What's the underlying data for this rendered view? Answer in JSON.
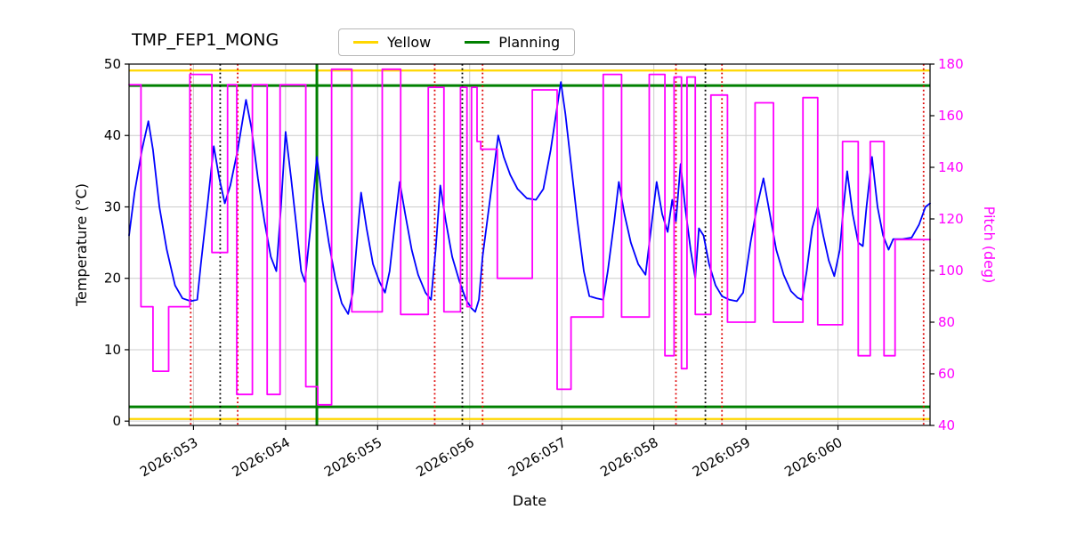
{
  "title": "TMP_FEP1_MONG",
  "legend": {
    "items": [
      {
        "label": "Yellow",
        "color": "#ffd700"
      },
      {
        "label": "Planning",
        "color": "#008000"
      }
    ]
  },
  "chart_data": {
    "type": "line",
    "title": "TMP_FEP1_MONG",
    "xlabel": "Date",
    "ylabel_left": "Temperature (°C)",
    "ylabel_right": "Pitch (deg)",
    "grid": true,
    "x_range_days": [
      52.3,
      61.0
    ],
    "x_tick_days": [
      53,
      54,
      55,
      56,
      57,
      58,
      59,
      60
    ],
    "x_tick_labels": [
      "2026:053",
      "2026:054",
      "2026:055",
      "2026:056",
      "2026:057",
      "2026:058",
      "2026:059",
      "2026:060"
    ],
    "y_left_range": [
      -0.6,
      50
    ],
    "y_left_ticks": [
      0,
      10,
      20,
      30,
      40,
      50
    ],
    "y_right_range": [
      40,
      180
    ],
    "y_right_ticks": [
      40,
      60,
      80,
      100,
      120,
      140,
      160,
      180
    ],
    "series": [
      {
        "name": "temperature",
        "axis": "left",
        "color": "#0000ff",
        "x": [
          52.3,
          52.36,
          52.44,
          52.51,
          52.56,
          52.63,
          52.71,
          52.8,
          52.88,
          52.97,
          53.04,
          53.08,
          53.15,
          53.22,
          53.28,
          53.34,
          53.4,
          53.48,
          53.57,
          53.63,
          53.7,
          53.77,
          53.84,
          53.9,
          53.95,
          54.0,
          54.06,
          54.12,
          54.17,
          54.21,
          54.27,
          54.34,
          54.4,
          54.47,
          54.54,
          54.61,
          54.68,
          54.73,
          54.78,
          54.82,
          54.88,
          54.95,
          55.02,
          55.08,
          55.13,
          55.19,
          55.24,
          55.3,
          55.37,
          55.44,
          55.52,
          55.58,
          55.63,
          55.68,
          55.74,
          55.81,
          55.89,
          55.96,
          56.02,
          56.06,
          56.1,
          56.14,
          56.19,
          56.26,
          56.31,
          56.37,
          56.44,
          56.52,
          56.62,
          56.72,
          56.8,
          56.88,
          56.95,
          56.99,
          57.04,
          57.1,
          57.17,
          57.24,
          57.3,
          57.38,
          57.45,
          57.5,
          57.57,
          57.62,
          57.68,
          57.75,
          57.83,
          57.91,
          57.97,
          58.03,
          58.09,
          58.15,
          58.2,
          58.24,
          58.29,
          58.34,
          58.4,
          58.45,
          58.49,
          58.54,
          58.6,
          58.67,
          58.74,
          58.82,
          58.9,
          58.97,
          59.05,
          59.12,
          59.19,
          59.26,
          59.33,
          59.41,
          59.49,
          59.56,
          59.61,
          59.66,
          59.72,
          59.78,
          59.84,
          59.9,
          59.96,
          60.02,
          60.06,
          60.1,
          60.16,
          60.22,
          60.27,
          60.31,
          60.37,
          60.43,
          60.49,
          60.55,
          60.6,
          60.7,
          60.8,
          60.88,
          60.95,
          61.0
        ],
        "y": [
          26,
          32,
          38,
          42,
          38,
          30,
          24,
          19,
          17.2,
          16.8,
          17,
          22,
          30,
          38.5,
          34,
          30.5,
          33,
          38,
          45,
          41,
          34,
          28,
          23,
          21,
          30,
          40.5,
          34,
          27,
          21,
          19.5,
          27,
          37,
          31,
          25,
          20,
          16.5,
          15,
          18,
          26,
          32,
          27,
          22,
          19.5,
          18,
          21,
          28,
          33.5,
          29,
          24,
          20.5,
          18,
          17,
          24,
          33,
          28,
          23,
          19.5,
          17,
          15.8,
          15.3,
          17,
          23,
          28,
          35,
          40,
          37,
          34.5,
          32.5,
          31.2,
          31,
          32.5,
          38,
          44,
          47.5,
          43,
          36,
          28,
          21,
          17.5,
          17.2,
          17,
          21,
          28,
          33.5,
          29,
          25,
          22,
          20.5,
          27,
          33.5,
          29,
          26.5,
          31,
          28,
          36,
          30,
          24,
          20,
          27,
          26,
          22,
          19,
          17.5,
          17,
          16.8,
          18,
          25,
          30,
          34,
          29,
          24,
          20.5,
          18.2,
          17.3,
          17,
          21,
          27,
          30,
          26,
          22.5,
          20.3,
          24,
          30,
          35,
          29,
          25,
          24.5,
          30,
          37,
          30,
          26,
          24,
          25.5,
          25.5,
          25.7,
          27.5,
          30,
          30.5
        ]
      },
      {
        "name": "pitch",
        "axis": "right",
        "color": "#ff00ff",
        "x": [
          52.3,
          52.43,
          52.43,
          52.56,
          52.56,
          52.73,
          52.73,
          52.96,
          52.96,
          53.2,
          53.2,
          53.37,
          53.37,
          53.47,
          53.47,
          53.64,
          53.64,
          53.8,
          53.8,
          53.94,
          53.94,
          54.22,
          54.22,
          54.35,
          54.35,
          54.5,
          54.5,
          54.72,
          54.72,
          55.05,
          55.05,
          55.25,
          55.25,
          55.55,
          55.55,
          55.72,
          55.72,
          55.9,
          55.9,
          55.97,
          55.97,
          56.02,
          56.02,
          56.08,
          56.08,
          56.12,
          56.12,
          56.3,
          56.3,
          56.68,
          56.68,
          56.95,
          56.95,
          57.1,
          57.1,
          57.45,
          57.45,
          57.65,
          57.65,
          57.95,
          57.95,
          58.12,
          58.12,
          58.22,
          58.22,
          58.3,
          58.3,
          58.36,
          58.36,
          58.45,
          58.45,
          58.62,
          58.62,
          58.8,
          58.8,
          59.1,
          59.1,
          59.3,
          59.3,
          59.62,
          59.62,
          59.78,
          59.78,
          60.05,
          60.05,
          60.22,
          60.22,
          60.35,
          60.35,
          60.5,
          60.5,
          60.62,
          60.62,
          61.0
        ],
        "y": [
          172,
          172,
          86,
          86,
          61,
          61,
          86,
          86,
          176,
          176,
          107,
          107,
          172,
          172,
          52,
          52,
          172,
          172,
          52,
          52,
          172,
          172,
          55,
          55,
          48,
          48,
          178,
          178,
          84,
          84,
          178,
          178,
          83,
          83,
          171,
          171,
          84,
          84,
          171,
          171,
          86,
          86,
          171,
          171,
          150,
          150,
          147,
          147,
          97,
          97,
          170,
          170,
          54,
          54,
          82,
          82,
          176,
          176,
          82,
          82,
          176,
          176,
          67,
          67,
          175,
          175,
          62,
          62,
          175,
          175,
          83,
          83,
          168,
          168,
          80,
          80,
          165,
          165,
          80,
          80,
          167,
          167,
          79,
          79,
          150,
          150,
          67,
          67,
          150,
          150,
          67,
          67,
          112,
          112
        ]
      }
    ],
    "h_lines": [
      {
        "name": "yellow-upper-limit",
        "axis": "left",
        "y": 49.1,
        "color": "#ffd700",
        "style": "solid"
      },
      {
        "name": "yellow-lower-limit",
        "axis": "left",
        "y": 0.3,
        "color": "#ffd700",
        "style": "solid"
      },
      {
        "name": "planning-upper-limit",
        "axis": "left",
        "y": 47.0,
        "color": "#008000",
        "style": "solid"
      },
      {
        "name": "planning-lower-limit",
        "axis": "left",
        "y": 2.0,
        "color": "#008000",
        "style": "solid"
      }
    ],
    "v_lines": [
      {
        "day": 52.97,
        "color": "#e00000",
        "style": "dotted"
      },
      {
        "day": 53.29,
        "color": "#000000",
        "style": "dotted"
      },
      {
        "day": 53.48,
        "color": "#e00000",
        "style": "dotted"
      },
      {
        "day": 54.34,
        "color": "#008000",
        "style": "solid"
      },
      {
        "day": 55.62,
        "color": "#e00000",
        "style": "dotted"
      },
      {
        "day": 55.92,
        "color": "#000000",
        "style": "dotted"
      },
      {
        "day": 56.14,
        "color": "#e00000",
        "style": "dotted"
      },
      {
        "day": 58.24,
        "color": "#e00000",
        "style": "dotted"
      },
      {
        "day": 58.56,
        "color": "#000000",
        "style": "dotted"
      },
      {
        "day": 58.74,
        "color": "#e00000",
        "style": "dotted"
      },
      {
        "day": 60.93,
        "color": "#e00000",
        "style": "dotted"
      }
    ]
  }
}
